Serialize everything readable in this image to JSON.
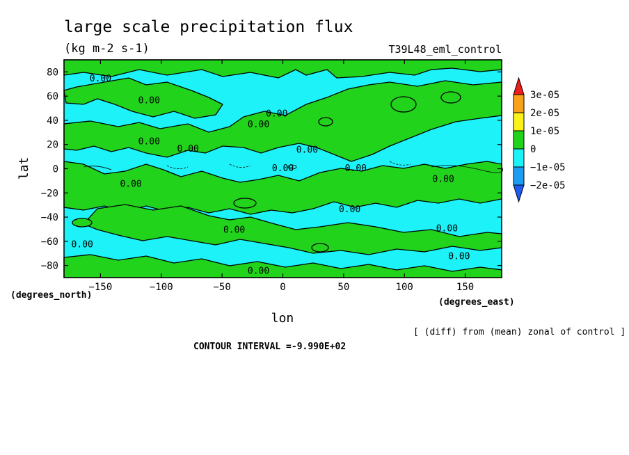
{
  "chart_data": {
    "type": "contour-map",
    "title": "large scale precipitation flux",
    "units": "(kg m-2 s-1)",
    "experiment": "T39L48_eml_control",
    "xlabel": "lon",
    "ylabel": "lat",
    "x_units_label": "(degrees_east)",
    "y_units_label": "(degrees_north)",
    "xlim": [
      -180,
      180
    ],
    "ylim": [
      -90,
      90
    ],
    "x_ticks": [
      -150,
      -100,
      -50,
      0,
      50,
      100,
      150
    ],
    "y_ticks": [
      80,
      60,
      40,
      20,
      0,
      -20,
      -40,
      -60,
      -80
    ],
    "contour_label": "0.00",
    "diff_note": "[ (diff) from (mean) zonal of control ]",
    "contour_interval": "CONTOUR INTERVAL =-9.990E+02",
    "colorbar": {
      "labels": [
        "3e-05",
        "2e-05",
        "1e-05",
        "0",
        "−1e-05",
        "−2e-05"
      ],
      "colors": [
        "#ee1c1c",
        "#f7a21a",
        "#fbf21c",
        "#22d31c",
        "#1cf2f7",
        "#1c9cf2",
        "#1c5cf2"
      ]
    },
    "field_levels_note": "Field is mostly between -1e-05 (cyan) and 1e-05 (green) with near-zero contours"
  }
}
